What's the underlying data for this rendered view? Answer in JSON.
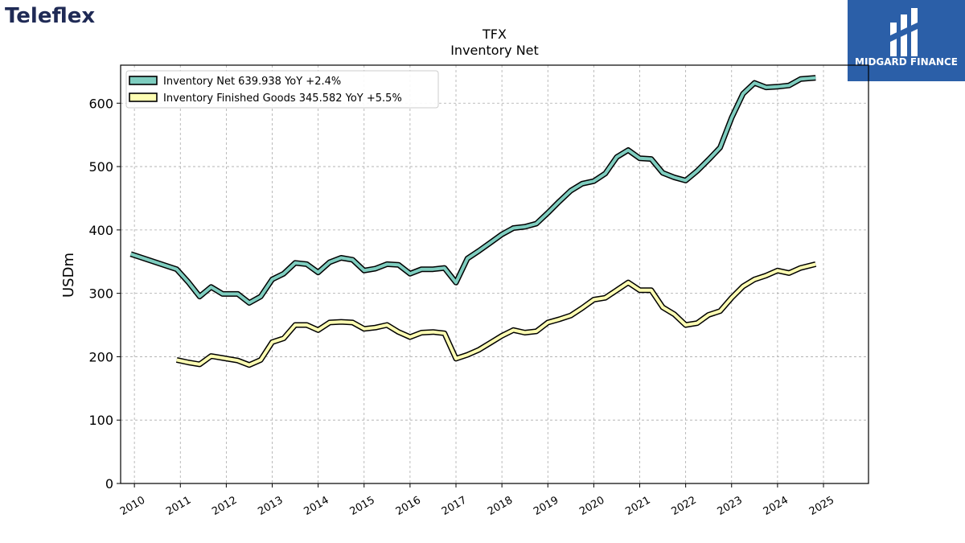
{
  "branding": {
    "company_logo_text": "Teleflex",
    "publisher_logo_text": "MIDGARD FINANCE"
  },
  "chart_data": {
    "type": "line",
    "title": "TFX",
    "subtitle": "Inventory Net",
    "xlabel": "",
    "ylabel": "USDm",
    "ylim": [
      0,
      660
    ],
    "yticks": [
      0,
      100,
      200,
      300,
      400,
      500,
      600
    ],
    "xlim": [
      2009.7,
      2025.98
    ],
    "xticks": [
      "2010",
      "2011",
      "2012",
      "2013",
      "2014",
      "2015",
      "2016",
      "2017",
      "2018",
      "2019",
      "2020",
      "2021",
      "2022",
      "2023",
      "2024",
      "2025"
    ],
    "grid": true,
    "legend_position": "top-left",
    "series": [
      {
        "name": "Inventory Net",
        "legend_label": "Inventory Net  639.938 YoY +2.4%",
        "color": "#7ecdbf",
        "x": [
          2009.92,
          2010.92,
          2011.17,
          2011.42,
          2011.67,
          2011.92,
          2012.25,
          2012.5,
          2012.75,
          2013.0,
          2013.25,
          2013.5,
          2013.75,
          2014.0,
          2014.25,
          2014.5,
          2014.75,
          2015.0,
          2015.25,
          2015.5,
          2015.75,
          2016.0,
          2016.25,
          2016.5,
          2016.75,
          2017.0,
          2017.25,
          2017.5,
          2017.75,
          2018.0,
          2018.25,
          2018.5,
          2018.75,
          2019.0,
          2019.25,
          2019.5,
          2019.75,
          2020.0,
          2020.25,
          2020.5,
          2020.75,
          2021.0,
          2021.25,
          2021.5,
          2021.75,
          2022.0,
          2022.25,
          2022.5,
          2022.75,
          2023.0,
          2023.25,
          2023.5,
          2023.75,
          2024.0,
          2024.25,
          2024.5,
          2024.83
        ],
        "values": [
          362,
          338,
          318,
          295,
          310,
          299,
          299,
          285,
          295,
          322,
          331,
          348,
          346,
          333,
          349,
          356,
          353,
          336,
          339,
          346,
          345,
          331,
          338,
          338,
          340,
          317,
          355,
          367,
          380,
          393,
          403,
          405,
          410,
          427,
          445,
          462,
          473,
          477,
          489,
          515,
          526,
          513,
          512,
          490,
          483,
          478,
          493,
          511,
          530,
          577,
          615,
          632,
          625,
          626,
          628,
          638,
          640
        ]
      },
      {
        "name": "Inventory Finished Goods",
        "legend_label": "Inventory Finished Goods  345.582 YoY +5.5%",
        "color": "#ffffb3",
        "x": [
          2010.92,
          2011.17,
          2011.42,
          2011.67,
          2011.92,
          2012.25,
          2012.5,
          2012.75,
          2013.0,
          2013.25,
          2013.5,
          2013.75,
          2014.0,
          2014.25,
          2014.5,
          2014.75,
          2015.0,
          2015.25,
          2015.5,
          2015.75,
          2016.0,
          2016.25,
          2016.5,
          2016.75,
          2017.0,
          2017.25,
          2017.5,
          2017.75,
          2018.0,
          2018.25,
          2018.5,
          2018.75,
          2019.0,
          2019.25,
          2019.5,
          2019.75,
          2020.0,
          2020.25,
          2020.5,
          2020.75,
          2021.0,
          2021.25,
          2021.5,
          2021.75,
          2022.0,
          2022.25,
          2022.5,
          2022.75,
          2023.0,
          2023.25,
          2023.5,
          2023.75,
          2024.0,
          2024.25,
          2024.5,
          2024.83
        ],
        "values": [
          195,
          191,
          188,
          201,
          198,
          194,
          187,
          195,
          223,
          229,
          250,
          250,
          242,
          254,
          255,
          254,
          244,
          246,
          250,
          239,
          231,
          238,
          239,
          237,
          197,
          203,
          211,
          222,
          233,
          242,
          238,
          240,
          254,
          259,
          265,
          277,
          290,
          293,
          305,
          317,
          305,
          305,
          278,
          267,
          250,
          253,
          266,
          272,
          293,
          311,
          322,
          328,
          336,
          332,
          340,
          346
        ]
      }
    ]
  }
}
